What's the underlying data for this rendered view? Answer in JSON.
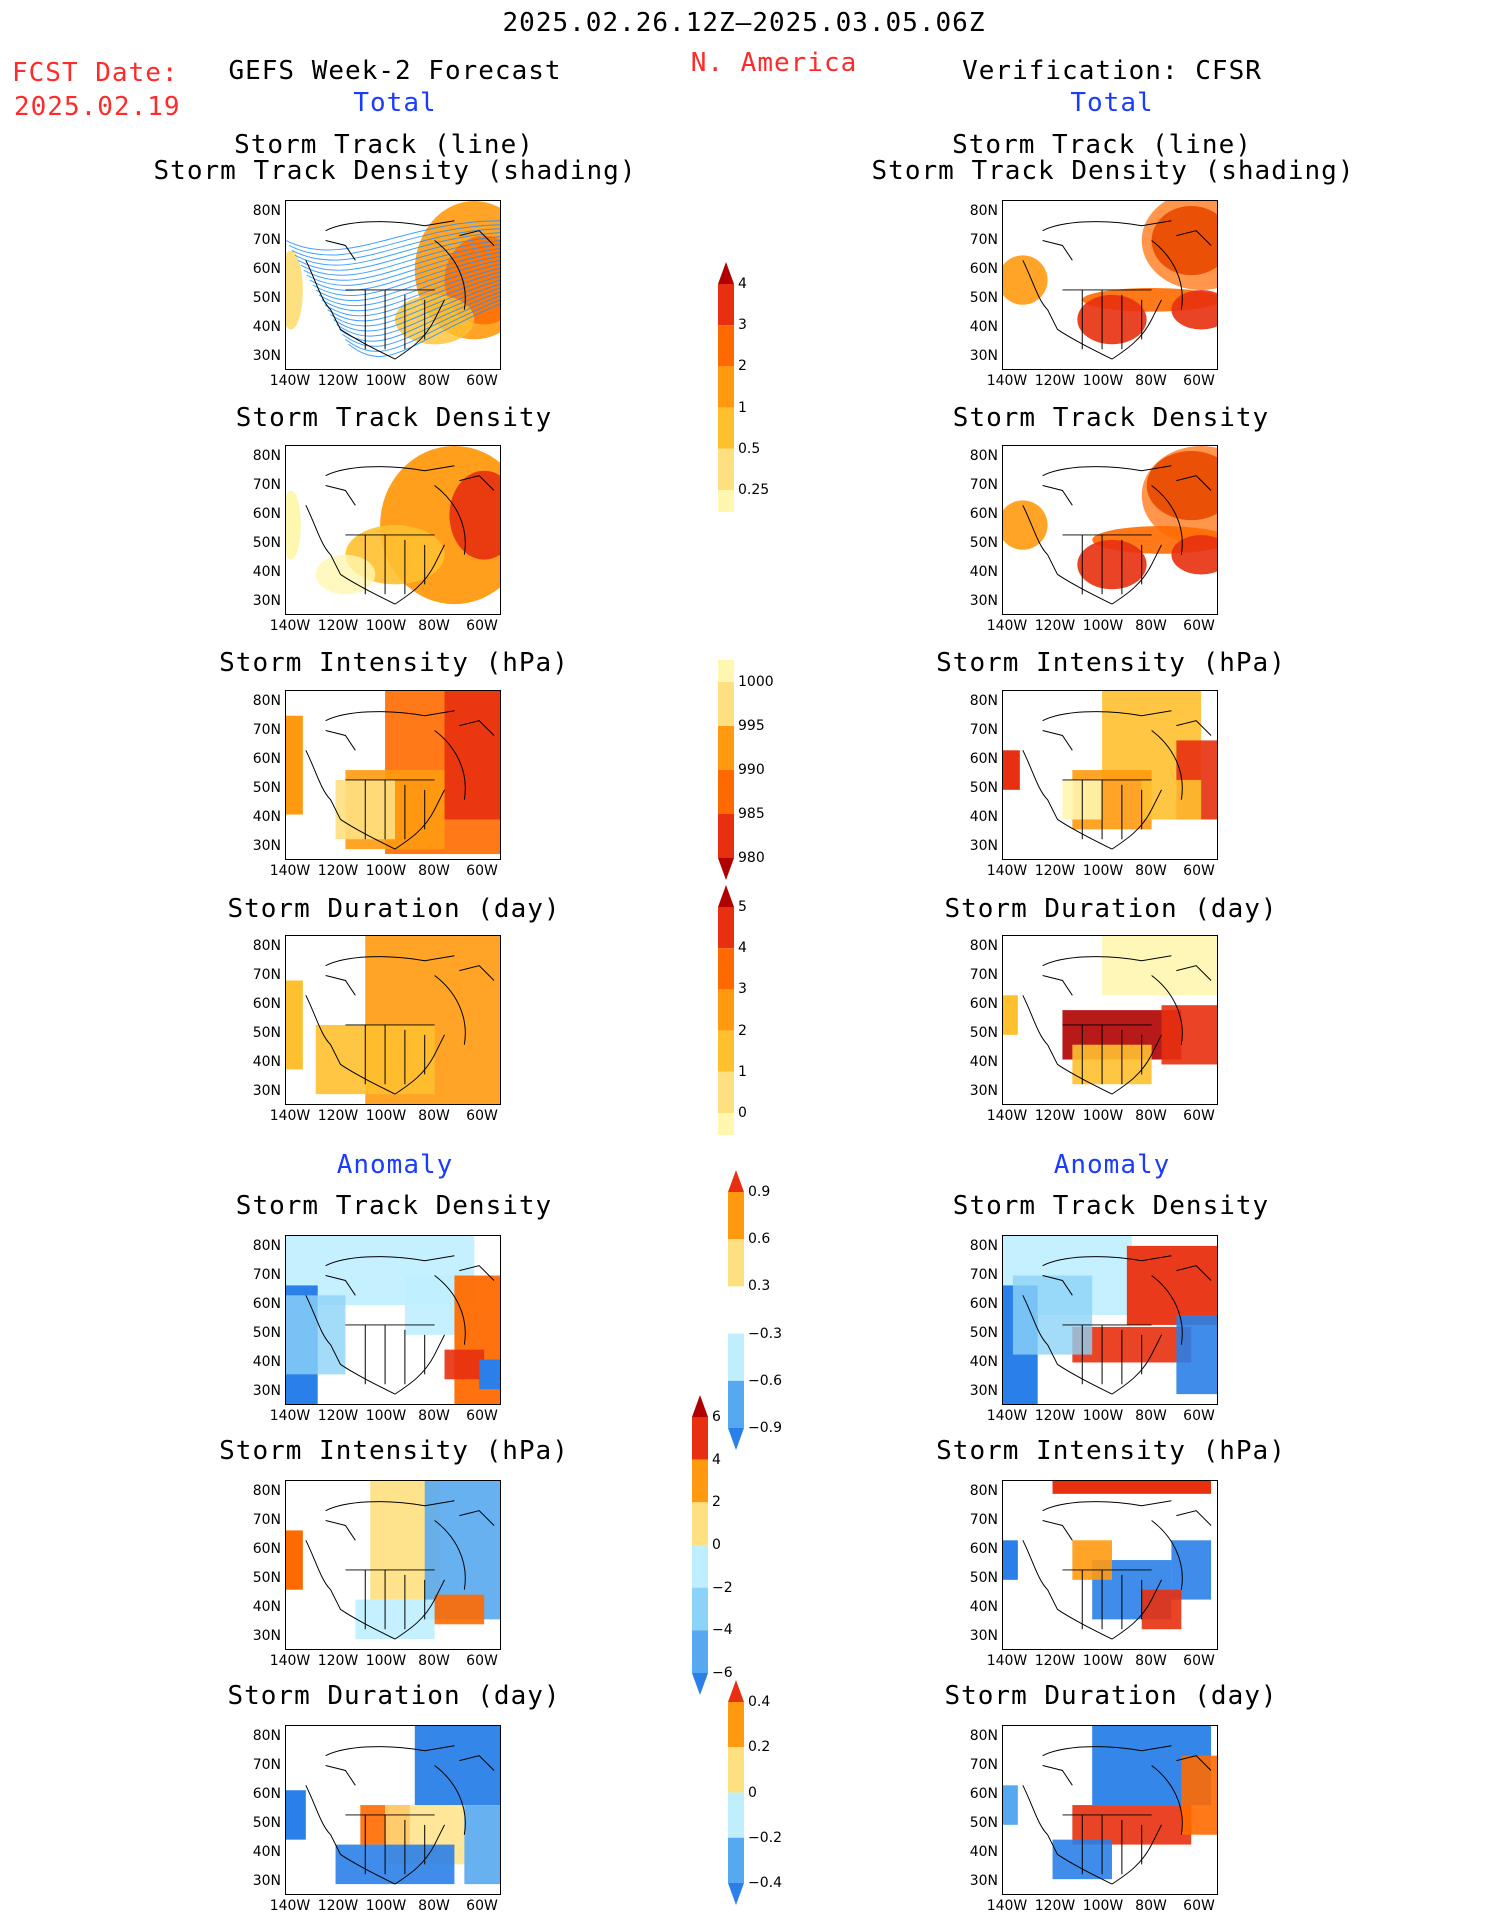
{
  "header": {
    "date_range": "2025.02.26.12Z–2025.03.05.06Z",
    "region": "N. America",
    "fcst_label": "FCST Date:",
    "fcst_date": "2025.02.19",
    "left_title": "GEFS Week-2 Forecast",
    "right_title": "Verification: CFSR"
  },
  "sections": {
    "total": "Total",
    "anomaly": "Anomaly"
  },
  "panel_titles": {
    "track_line": "Storm Track (line)",
    "track_shading": "Storm Track Density (shading)",
    "density": "Storm Track Density",
    "intensity": "Storm Intensity (hPa)",
    "duration": "Storm Duration (day)"
  },
  "axes": {
    "lat_labels": [
      "80N",
      "70N",
      "60N",
      "50N",
      "40N",
      "30N"
    ],
    "lon_labels": [
      "140W",
      "120W",
      "100W",
      "80W",
      "60W"
    ]
  },
  "colorbars": {
    "density_total": [
      "4",
      "3",
      "2",
      "1",
      "0.5",
      "0.25"
    ],
    "intensity_total": [
      "1000",
      "995",
      "990",
      "985",
      "980"
    ],
    "duration_total": [
      "5",
      "4",
      "3",
      "2",
      "1",
      "0"
    ],
    "density_anom": [
      "0.9",
      "0.6",
      "0.3",
      "−0.3",
      "−0.6",
      "−0.9"
    ],
    "intensity_anom": [
      "6",
      "4",
      "2",
      "0",
      "−2",
      "−4",
      "−6"
    ],
    "duration_anom": [
      "0.4",
      "0.2",
      "0",
      "−0.2",
      "−0.4"
    ]
  },
  "colors": {
    "title_red": "#ff2a2a",
    "title_blue": "#1a3cff",
    "warm": [
      "#fff6b0",
      "#ffe080",
      "#ffc030",
      "#ff9a10",
      "#ff6a00",
      "#e83010",
      "#b00000"
    ],
    "cool": [
      "#ffffff",
      "#bfeeff",
      "#8cd3f7",
      "#56a9f0",
      "#2a7fe8",
      "#1656c8"
    ],
    "track_lines": "#1e90ff"
  }
}
